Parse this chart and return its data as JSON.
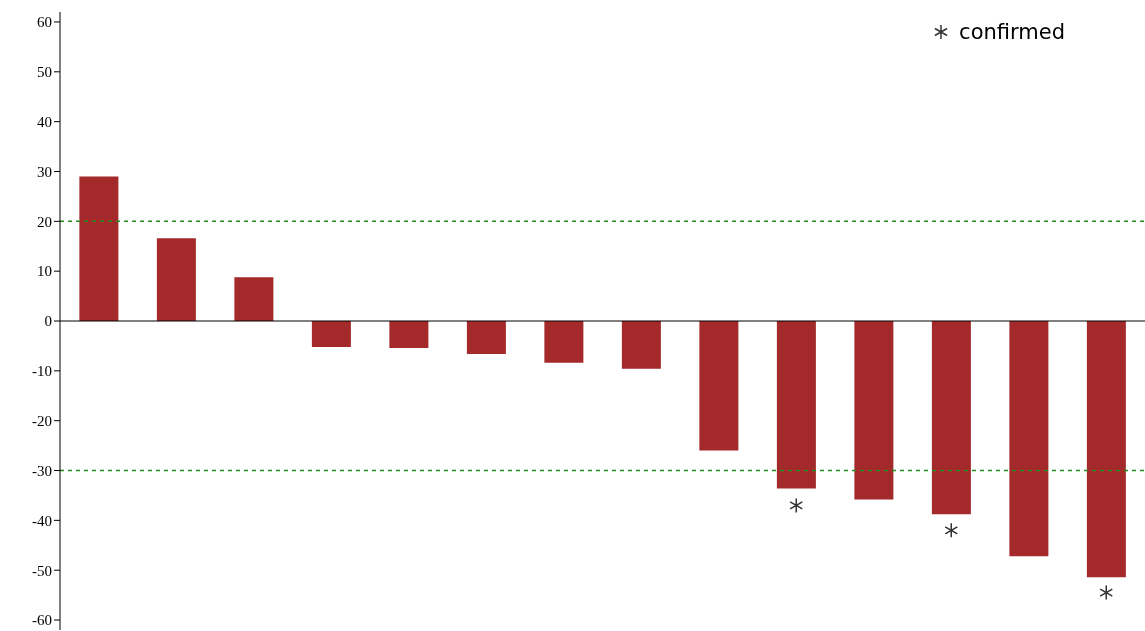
{
  "chart_data": {
    "type": "bar",
    "categories": [
      null,
      null,
      null,
      null,
      null,
      null,
      null,
      null,
      null,
      null,
      null,
      null,
      null,
      null
    ],
    "series": [
      {
        "color": "#a4292a",
        "values": [
          29,
          16.6,
          8.8,
          -5.2,
          -5.4,
          -6.6,
          -8.4,
          -9.6,
          -26,
          -33.6,
          -35.8,
          -38.8,
          -47.2,
          -51.4
        ]
      },
      {
        "type": "scatter",
        "name": "confirmed",
        "color": "#333333",
        "marker": "cross",
        "values": [
          null,
          null,
          null,
          null,
          null,
          null,
          null,
          null,
          null,
          -37,
          null,
          -42,
          null,
          -54.5
        ]
      }
    ],
    "ylim": [
      -62,
      62
    ],
    "yticks": [
      -60,
      -50,
      -40,
      -30,
      -20,
      -10,
      0,
      10,
      20,
      30,
      40,
      50,
      60
    ],
    "grid": false,
    "legend": "top right",
    "ref_lines": [
      {
        "axis": "y",
        "value": 20,
        "color": "#228b22",
        "line_style": "dashed"
      },
      {
        "axis": "y",
        "value": -30,
        "color": "#228b22",
        "line_style": "dashed"
      }
    ]
  }
}
